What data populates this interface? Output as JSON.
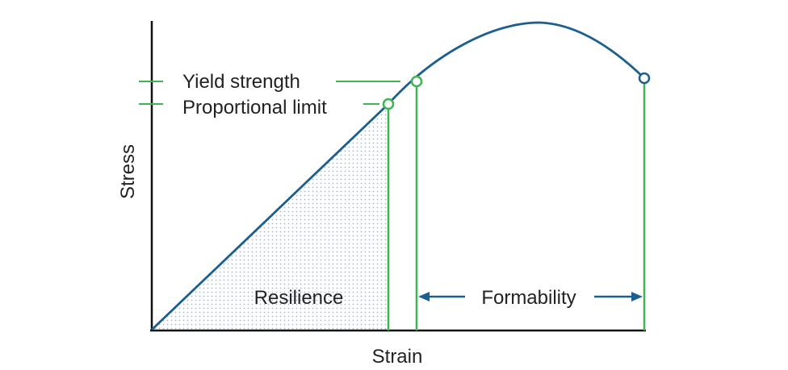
{
  "labels": {
    "yield_strength": "Yield strength",
    "proportional_limit": "Proportional limit",
    "resilience": "Resilience",
    "formability": "Formability",
    "x_axis": "Strain",
    "y_axis": "Stress"
  },
  "colors": {
    "curve": "#1a5f8f",
    "marker_lines": "#3cb552",
    "axes": "#111111",
    "text": "#222222",
    "resilience_dots": "#a9b9c9"
  }
}
